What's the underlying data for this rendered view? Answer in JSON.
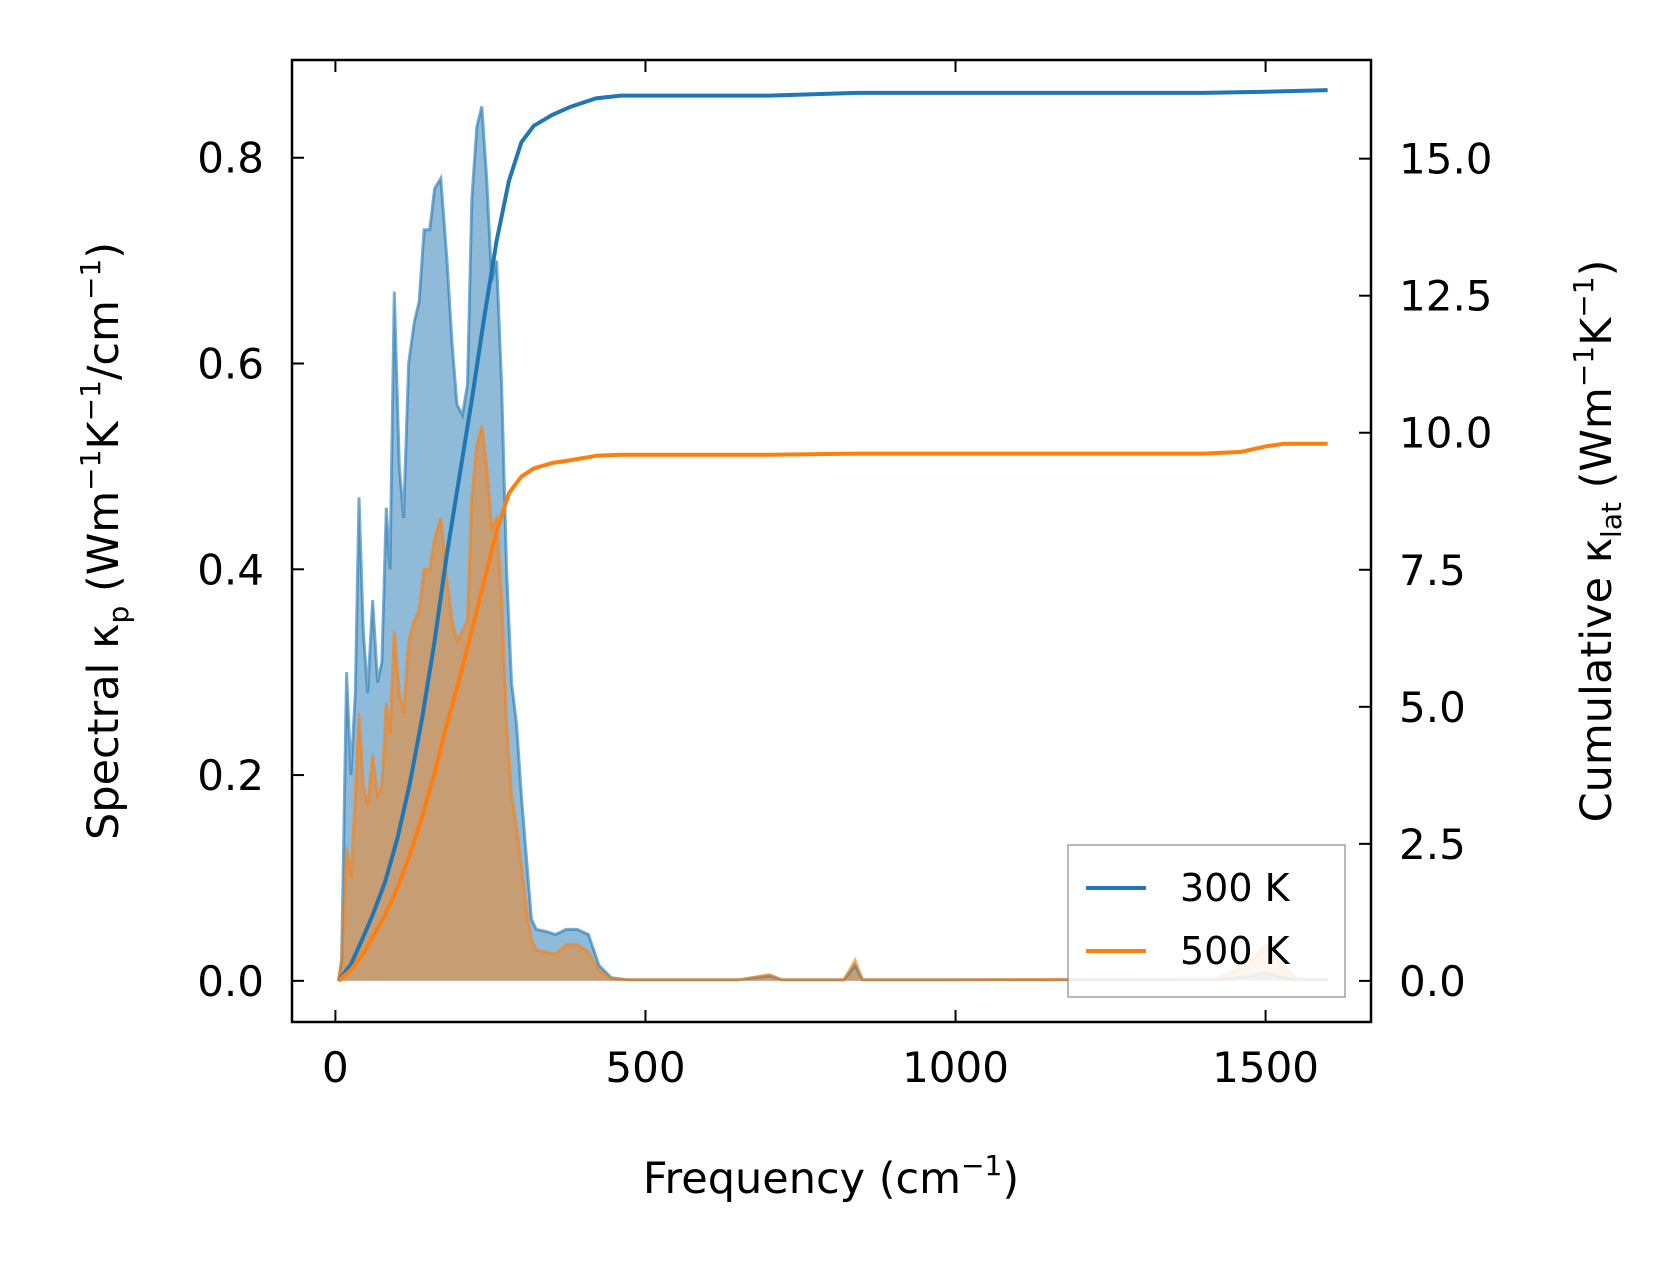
{
  "chart_data": {
    "type": "line",
    "xlabel": {
      "base": "Frequency (cm",
      "sup": "−1",
      "tail": ")"
    },
    "ylabel_left": {
      "p1": "Spectral κ",
      "sub": "p",
      "p2": " (Wm",
      "sup1": "−1",
      "p3": "K",
      "sup2": "−1",
      "p4": "/cm",
      "sup3": "−1",
      "p5": ")"
    },
    "ylabel_right": {
      "p1": "Cumulative κ",
      "sub": "lat",
      "p2": " (Wm",
      "sup1": "−1",
      "p3": "K",
      "sup2": "−1",
      "p4": ")"
    },
    "xlim": [
      -70,
      1670
    ],
    "ylim_left": [
      -0.04,
      0.895
    ],
    "ylim_right": [
      -0.75,
      16.8
    ],
    "x_ticks": [
      0,
      500,
      1000,
      1500
    ],
    "y_ticks_left": [
      "0.0",
      "0.2",
      "0.4",
      "0.6",
      "0.8"
    ],
    "y_ticks_right": [
      "0.0",
      "2.5",
      "5.0",
      "7.5",
      "10.0",
      "12.5",
      "15.0"
    ],
    "legend": {
      "position": "lower right",
      "entries": [
        "300 K",
        "500 K"
      ]
    },
    "colors": {
      "300 K": "#1f77b4",
      "500 K": "#ff7f0e"
    },
    "series": [
      {
        "name": "300 K",
        "spectral": [
          [
            5,
            0
          ],
          [
            10,
            0.02
          ],
          [
            18,
            0.3
          ],
          [
            25,
            0.2
          ],
          [
            32,
            0.28
          ],
          [
            38,
            0.47
          ],
          [
            45,
            0.34
          ],
          [
            52,
            0.28
          ],
          [
            60,
            0.37
          ],
          [
            68,
            0.29
          ],
          [
            75,
            0.31
          ],
          [
            82,
            0.46
          ],
          [
            88,
            0.4
          ],
          [
            95,
            0.67
          ],
          [
            103,
            0.5
          ],
          [
            110,
            0.45
          ],
          [
            118,
            0.6
          ],
          [
            127,
            0.64
          ],
          [
            135,
            0.66
          ],
          [
            143,
            0.73
          ],
          [
            152,
            0.73
          ],
          [
            160,
            0.77
          ],
          [
            170,
            0.78
          ],
          [
            180,
            0.7
          ],
          [
            188,
            0.62
          ],
          [
            196,
            0.56
          ],
          [
            205,
            0.55
          ],
          [
            213,
            0.58
          ],
          [
            220,
            0.76
          ],
          [
            228,
            0.83
          ],
          [
            236,
            0.85
          ],
          [
            244,
            0.78
          ],
          [
            252,
            0.68
          ],
          [
            260,
            0.7
          ],
          [
            268,
            0.58
          ],
          [
            276,
            0.4
          ],
          [
            284,
            0.29
          ],
          [
            292,
            0.25
          ],
          [
            300,
            0.18
          ],
          [
            308,
            0.12
          ],
          [
            316,
            0.06
          ],
          [
            324,
            0.05
          ],
          [
            340,
            0.048
          ],
          [
            355,
            0.045
          ],
          [
            372,
            0.05
          ],
          [
            390,
            0.05
          ],
          [
            408,
            0.045
          ],
          [
            425,
            0.015
          ],
          [
            445,
            0.003
          ],
          [
            470,
            0.001
          ],
          [
            500,
            0.001
          ],
          [
            650,
            0.001
          ],
          [
            700,
            0.005
          ],
          [
            720,
            0.001
          ],
          [
            820,
            0.001
          ],
          [
            838,
            0.015
          ],
          [
            850,
            0.001
          ],
          [
            1000,
            0.001
          ],
          [
            1420,
            0.001
          ],
          [
            1470,
            0.004
          ],
          [
            1500,
            0.008
          ],
          [
            1530,
            0.003
          ],
          [
            1550,
            0.001
          ],
          [
            1600,
            0.001
          ]
        ],
        "cumulative": [
          [
            5,
            0
          ],
          [
            25,
            0.3
          ],
          [
            45,
            0.8
          ],
          [
            60,
            1.2
          ],
          [
            80,
            1.8
          ],
          [
            100,
            2.6
          ],
          [
            120,
            3.6
          ],
          [
            140,
            4.8
          ],
          [
            160,
            6.2
          ],
          [
            180,
            7.8
          ],
          [
            200,
            9.2
          ],
          [
            220,
            10.6
          ],
          [
            240,
            12.1
          ],
          [
            260,
            13.5
          ],
          [
            280,
            14.6
          ],
          [
            300,
            15.3
          ],
          [
            320,
            15.6
          ],
          [
            350,
            15.8
          ],
          [
            380,
            15.95
          ],
          [
            420,
            16.1
          ],
          [
            460,
            16.15
          ],
          [
            700,
            16.15
          ],
          [
            840,
            16.2
          ],
          [
            1400,
            16.2
          ],
          [
            1500,
            16.22
          ],
          [
            1600,
            16.25
          ]
        ]
      },
      {
        "name": "500 K",
        "spectral": [
          [
            5,
            0
          ],
          [
            10,
            0.02
          ],
          [
            18,
            0.13
          ],
          [
            25,
            0.1
          ],
          [
            32,
            0.18
          ],
          [
            38,
            0.26
          ],
          [
            45,
            0.19
          ],
          [
            52,
            0.17
          ],
          [
            60,
            0.22
          ],
          [
            68,
            0.18
          ],
          [
            75,
            0.19
          ],
          [
            82,
            0.27
          ],
          [
            88,
            0.24
          ],
          [
            95,
            0.34
          ],
          [
            103,
            0.28
          ],
          [
            110,
            0.26
          ],
          [
            118,
            0.33
          ],
          [
            127,
            0.35
          ],
          [
            135,
            0.36
          ],
          [
            143,
            0.4
          ],
          [
            152,
            0.4
          ],
          [
            160,
            0.43
          ],
          [
            170,
            0.45
          ],
          [
            180,
            0.39
          ],
          [
            188,
            0.35
          ],
          [
            196,
            0.33
          ],
          [
            205,
            0.34
          ],
          [
            213,
            0.35
          ],
          [
            220,
            0.47
          ],
          [
            228,
            0.52
          ],
          [
            236,
            0.54
          ],
          [
            244,
            0.5
          ],
          [
            252,
            0.44
          ],
          [
            260,
            0.45
          ],
          [
            268,
            0.37
          ],
          [
            276,
            0.25
          ],
          [
            284,
            0.18
          ],
          [
            292,
            0.15
          ],
          [
            300,
            0.11
          ],
          [
            308,
            0.07
          ],
          [
            316,
            0.04
          ],
          [
            324,
            0.03
          ],
          [
            340,
            0.028
          ],
          [
            355,
            0.026
          ],
          [
            372,
            0.035
          ],
          [
            390,
            0.035
          ],
          [
            408,
            0.028
          ],
          [
            425,
            0.01
          ],
          [
            445,
            0.002
          ],
          [
            470,
            0.001
          ],
          [
            500,
            0.001
          ],
          [
            650,
            0.001
          ],
          [
            700,
            0.006
          ],
          [
            720,
            0.001
          ],
          [
            820,
            0.001
          ],
          [
            838,
            0.02
          ],
          [
            850,
            0.001
          ],
          [
            1000,
            0.001
          ],
          [
            1420,
            0.002
          ],
          [
            1470,
            0.015
          ],
          [
            1500,
            0.035
          ],
          [
            1520,
            0.02
          ],
          [
            1550,
            0.002
          ],
          [
            1600,
            0.001
          ]
        ],
        "cumulative": [
          [
            5,
            0
          ],
          [
            25,
            0.2
          ],
          [
            45,
            0.5
          ],
          [
            60,
            0.8
          ],
          [
            80,
            1.2
          ],
          [
            100,
            1.7
          ],
          [
            120,
            2.3
          ],
          [
            140,
            3.0
          ],
          [
            160,
            3.8
          ],
          [
            180,
            4.7
          ],
          [
            200,
            5.5
          ],
          [
            220,
            6.4
          ],
          [
            240,
            7.3
          ],
          [
            260,
            8.2
          ],
          [
            280,
            8.9
          ],
          [
            300,
            9.2
          ],
          [
            320,
            9.35
          ],
          [
            350,
            9.45
          ],
          [
            380,
            9.5
          ],
          [
            420,
            9.58
          ],
          [
            460,
            9.6
          ],
          [
            700,
            9.6
          ],
          [
            840,
            9.62
          ],
          [
            1400,
            9.62
          ],
          [
            1460,
            9.65
          ],
          [
            1500,
            9.75
          ],
          [
            1530,
            9.8
          ],
          [
            1600,
            9.8
          ]
        ]
      }
    ]
  }
}
